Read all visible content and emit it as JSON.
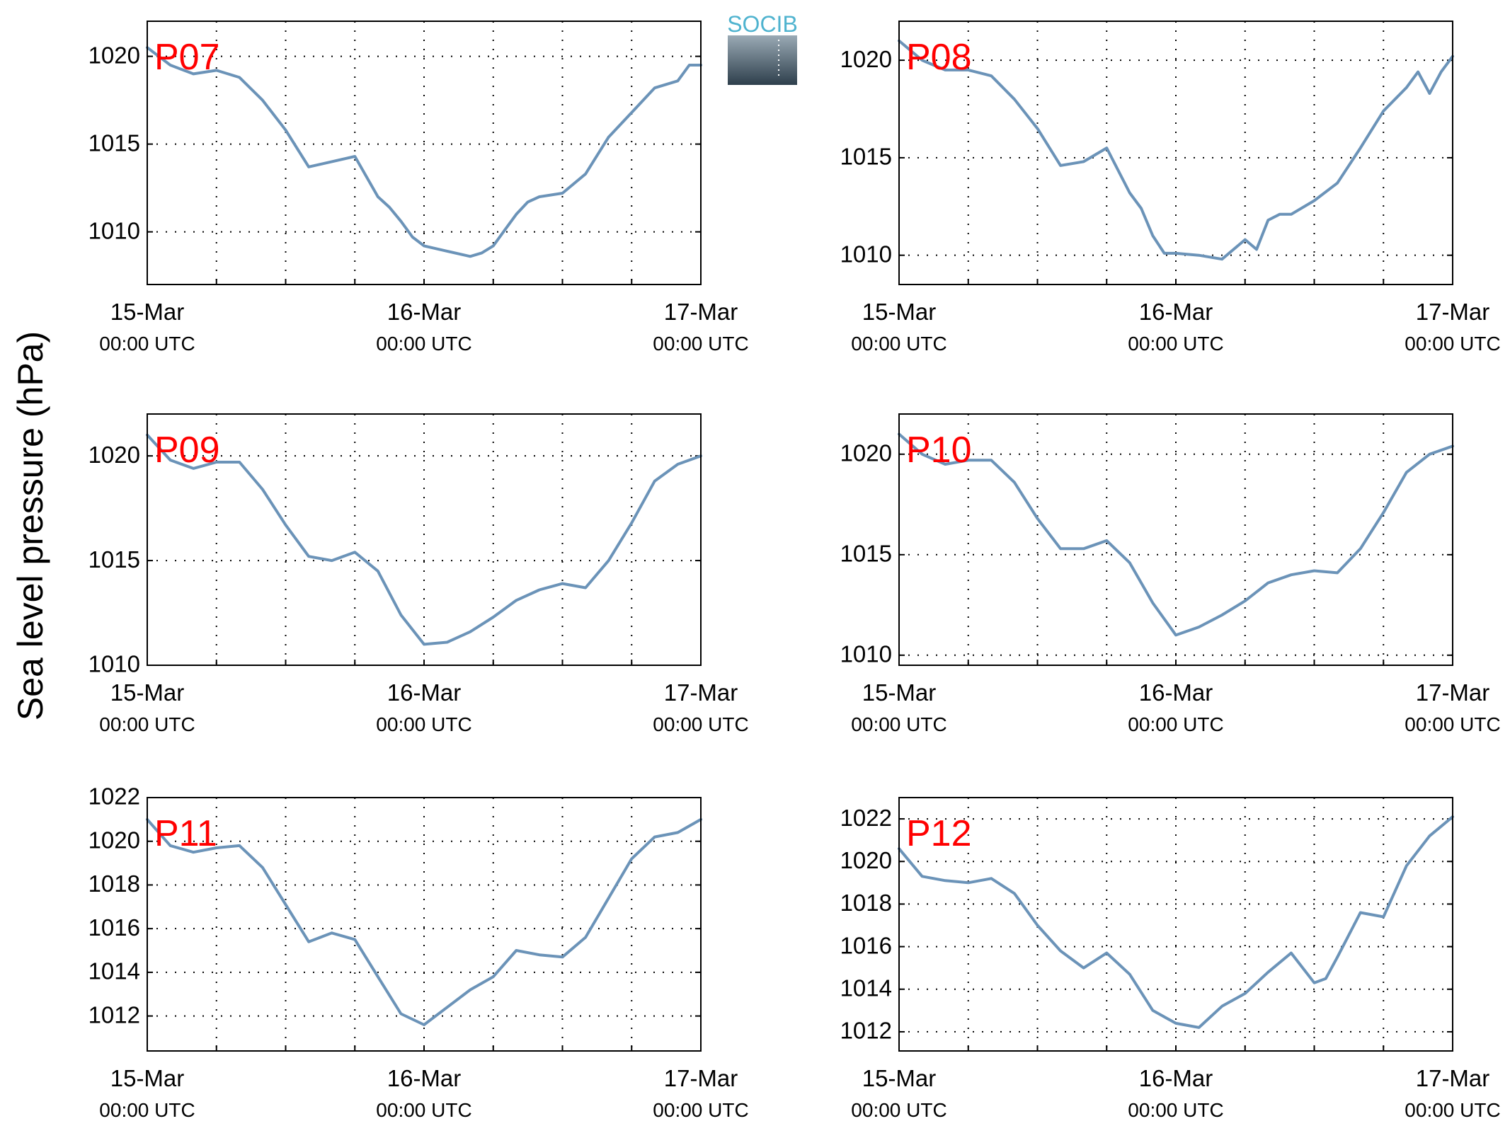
{
  "figure": {
    "ylabel": "Sea level pressure (hPa)",
    "line_color": "#6b93b8",
    "title_color": "#ff0000",
    "logo": {
      "text": "SOCIB",
      "text_color": "#4fb3cf",
      "gradient_top": "#9aaab5",
      "gradient_bottom": "#2e3f4c"
    }
  },
  "chart_data": [
    {
      "type": "line",
      "title": "P07",
      "grid": true,
      "xlim": [
        0,
        48
      ],
      "ylim": [
        1007,
        1022
      ],
      "yticks": [
        1010,
        1015,
        1020
      ],
      "xtick_labels": [
        {
          "x": 0,
          "date": "15-Mar",
          "time": "00:00 UTC"
        },
        {
          "x": 24,
          "date": "16-Mar",
          "time": "00:00 UTC"
        },
        {
          "x": 48,
          "date": "17-Mar",
          "time": "00:00 UTC"
        }
      ],
      "series": [
        {
          "x": [
            0,
            2,
            4,
            6,
            8,
            10,
            12,
            14,
            16,
            18,
            20,
            21,
            22,
            23,
            24,
            26,
            28,
            29,
            30,
            31,
            32,
            33,
            34,
            36,
            38,
            40,
            42,
            44,
            46,
            47,
            48
          ],
          "y": [
            1020.5,
            1019.5,
            1019,
            1019.2,
            1018.8,
            1017.5,
            1015.8,
            1013.7,
            1014,
            1014.3,
            1012,
            1011.4,
            1010.6,
            1009.7,
            1009.2,
            1008.9,
            1008.6,
            1008.8,
            1009.2,
            1010.1,
            1011,
            1011.7,
            1012,
            1012.2,
            1013.3,
            1015.4,
            1016.8,
            1018.2,
            1018.6,
            1019.5,
            1019.5
          ]
        }
      ]
    },
    {
      "type": "line",
      "title": "P08",
      "grid": true,
      "xlim": [
        0,
        48
      ],
      "ylim": [
        1008.5,
        1022
      ],
      "yticks": [
        1010,
        1015,
        1020
      ],
      "xtick_labels": [
        {
          "x": 0,
          "date": "15-Mar",
          "time": "00:00 UTC"
        },
        {
          "x": 24,
          "date": "16-Mar",
          "time": "00:00 UTC"
        },
        {
          "x": 48,
          "date": "17-Mar",
          "time": "00:00 UTC"
        }
      ],
      "series": [
        {
          "x": [
            0,
            2,
            4,
            6,
            8,
            10,
            12,
            14,
            16,
            18,
            20,
            21,
            22,
            23,
            24,
            26,
            28,
            30,
            31,
            32,
            33,
            34,
            36,
            38,
            40,
            42,
            44,
            45,
            46,
            47,
            48
          ],
          "y": [
            1021,
            1020,
            1019.5,
            1019.5,
            1019.2,
            1018,
            1016.5,
            1014.6,
            1014.8,
            1015.5,
            1013.2,
            1012.4,
            1011,
            1010.1,
            1010.1,
            1010,
            1009.8,
            1010.8,
            1010.3,
            1011.8,
            1012.1,
            1012.1,
            1012.8,
            1013.7,
            1015.5,
            1017.4,
            1018.6,
            1019.4,
            1018.3,
            1019.4,
            1020.2
          ]
        }
      ]
    },
    {
      "type": "line",
      "title": "P09",
      "grid": true,
      "xlim": [
        0,
        48
      ],
      "ylim": [
        1010,
        1022
      ],
      "yticks": [
        1010,
        1015,
        1020
      ],
      "xtick_labels": [
        {
          "x": 0,
          "date": "15-Mar",
          "time": "00:00 UTC"
        },
        {
          "x": 24,
          "date": "16-Mar",
          "time": "00:00 UTC"
        },
        {
          "x": 48,
          "date": "17-Mar",
          "time": "00:00 UTC"
        }
      ],
      "series": [
        {
          "x": [
            0,
            2,
            4,
            6,
            8,
            10,
            12,
            14,
            16,
            18,
            20,
            22,
            24,
            26,
            28,
            30,
            32,
            34,
            36,
            38,
            40,
            42,
            44,
            46,
            48
          ],
          "y": [
            1021,
            1019.8,
            1019.4,
            1019.7,
            1019.7,
            1018.4,
            1016.7,
            1015.2,
            1015,
            1015.4,
            1014.5,
            1012.4,
            1011,
            1011.1,
            1011.6,
            1012.3,
            1013.1,
            1013.6,
            1013.9,
            1013.7,
            1015,
            1016.8,
            1018.8,
            1019.6,
            1020
          ]
        }
      ]
    },
    {
      "type": "line",
      "title": "P10",
      "grid": true,
      "xlim": [
        0,
        48
      ],
      "ylim": [
        1009.5,
        1022
      ],
      "yticks": [
        1010,
        1015,
        1020
      ],
      "xtick_labels": [
        {
          "x": 0,
          "date": "15-Mar",
          "time": "00:00 UTC"
        },
        {
          "x": 24,
          "date": "16-Mar",
          "time": "00:00 UTC"
        },
        {
          "x": 48,
          "date": "17-Mar",
          "time": "00:00 UTC"
        }
      ],
      "series": [
        {
          "x": [
            0,
            2,
            4,
            6,
            8,
            10,
            12,
            14,
            16,
            18,
            20,
            22,
            24,
            26,
            28,
            30,
            32,
            34,
            36,
            38,
            40,
            42,
            44,
            46,
            48
          ],
          "y": [
            1021,
            1020,
            1019.5,
            1019.7,
            1019.7,
            1018.6,
            1016.8,
            1015.3,
            1015.3,
            1015.7,
            1014.6,
            1012.6,
            1011,
            1011.4,
            1012,
            1012.7,
            1013.6,
            1014,
            1014.2,
            1014.1,
            1015.3,
            1017.1,
            1019.1,
            1020,
            1020.4
          ]
        }
      ]
    },
    {
      "type": "line",
      "title": "P11",
      "grid": true,
      "xlim": [
        0,
        48
      ],
      "ylim": [
        1010.4,
        1022
      ],
      "yticks": [
        1012,
        1014,
        1016,
        1018,
        1020,
        1022
      ],
      "xtick_labels": [
        {
          "x": 0,
          "date": "15-Mar",
          "time": "00:00 UTC"
        },
        {
          "x": 24,
          "date": "16-Mar",
          "time": "00:00 UTC"
        },
        {
          "x": 48,
          "date": "17-Mar",
          "time": "00:00 UTC"
        }
      ],
      "series": [
        {
          "x": [
            0,
            2,
            4,
            6,
            8,
            10,
            12,
            14,
            16,
            18,
            20,
            22,
            24,
            26,
            28,
            30,
            32,
            34,
            36,
            38,
            40,
            42,
            44,
            46,
            48
          ],
          "y": [
            1021,
            1019.8,
            1019.5,
            1019.7,
            1019.8,
            1018.8,
            1017.1,
            1015.4,
            1015.8,
            1015.5,
            1013.8,
            1012.1,
            1011.6,
            1012.4,
            1013.2,
            1013.8,
            1015,
            1014.8,
            1014.7,
            1015.6,
            1017.4,
            1019.2,
            1020.2,
            1020.4,
            1021
          ]
        }
      ]
    },
    {
      "type": "line",
      "title": "P12",
      "grid": true,
      "xlim": [
        0,
        48
      ],
      "ylim": [
        1011.1,
        1023
      ],
      "yticks": [
        1012,
        1014,
        1016,
        1018,
        1020,
        1022
      ],
      "xtick_labels": [
        {
          "x": 0,
          "date": "15-Mar",
          "time": "00:00 UTC"
        },
        {
          "x": 24,
          "date": "16-Mar",
          "time": "00:00 UTC"
        },
        {
          "x": 48,
          "date": "17-Mar",
          "time": "00:00 UTC"
        }
      ],
      "series": [
        {
          "x": [
            0,
            2,
            4,
            6,
            8,
            10,
            12,
            14,
            16,
            18,
            20,
            22,
            24,
            26,
            28,
            30,
            32,
            34,
            36,
            37,
            38,
            40,
            42,
            44,
            46,
            48
          ],
          "y": [
            1020.6,
            1019.3,
            1019.1,
            1019,
            1019.2,
            1018.5,
            1017,
            1015.8,
            1015,
            1015.7,
            1014.7,
            1013,
            1012.4,
            1012.2,
            1013.2,
            1013.8,
            1014.8,
            1015.7,
            1014.3,
            1014.5,
            1015.5,
            1017.6,
            1017.4,
            1019.8,
            1021.2,
            1022.1
          ]
        }
      ]
    }
  ]
}
